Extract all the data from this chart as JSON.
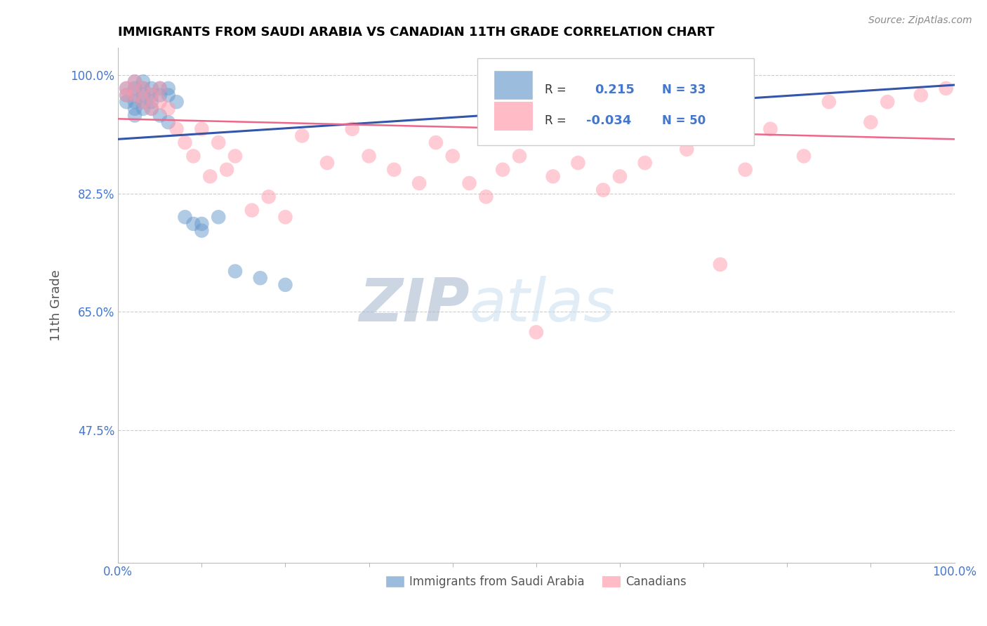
{
  "title": "IMMIGRANTS FROM SAUDI ARABIA VS CANADIAN 11TH GRADE CORRELATION CHART",
  "source": "Source: ZipAtlas.com",
  "ylabel": "11th Grade",
  "xlim": [
    0.0,
    1.0
  ],
  "ylim": [
    0.28,
    1.04
  ],
  "yticks": [
    0.475,
    0.65,
    0.825,
    1.0
  ],
  "ytick_labels": [
    "47.5%",
    "65.0%",
    "82.5%",
    "100.0%"
  ],
  "xtick_labels": [
    "0.0%",
    "100.0%"
  ],
  "xticks": [
    0.0,
    1.0
  ],
  "blue_R": 0.215,
  "blue_N": 33,
  "pink_R": -0.034,
  "pink_N": 50,
  "blue_color": "#6699CC",
  "pink_color": "#FF99AA",
  "blue_line_color": "#3355AA",
  "pink_line_color": "#EE6688",
  "background_color": "#FFFFFF",
  "watermark_color": "#C8DDF0",
  "grid_color": "#CCCCCC",
  "title_color": "#000000",
  "axis_label_color": "#555555",
  "tick_label_color": "#4477CC",
  "blue_x": [
    0.01,
    0.01,
    0.01,
    0.02,
    0.02,
    0.02,
    0.02,
    0.02,
    0.02,
    0.03,
    0.03,
    0.03,
    0.03,
    0.03,
    0.04,
    0.04,
    0.04,
    0.05,
    0.05,
    0.06,
    0.06,
    0.07,
    0.08,
    0.09,
    0.1,
    0.12,
    0.14,
    0.17,
    0.2,
    0.04,
    0.05,
    0.06,
    0.1
  ],
  "blue_y": [
    0.98,
    0.97,
    0.96,
    0.99,
    0.98,
    0.97,
    0.96,
    0.95,
    0.94,
    0.99,
    0.98,
    0.97,
    0.96,
    0.95,
    0.98,
    0.97,
    0.96,
    0.98,
    0.97,
    0.98,
    0.97,
    0.96,
    0.79,
    0.78,
    0.77,
    0.79,
    0.71,
    0.7,
    0.69,
    0.95,
    0.94,
    0.93,
    0.78
  ],
  "pink_x": [
    0.01,
    0.01,
    0.02,
    0.02,
    0.03,
    0.03,
    0.04,
    0.04,
    0.05,
    0.05,
    0.06,
    0.07,
    0.08,
    0.09,
    0.1,
    0.11,
    0.12,
    0.13,
    0.14,
    0.16,
    0.18,
    0.2,
    0.22,
    0.25,
    0.28,
    0.3,
    0.33,
    0.36,
    0.38,
    0.4,
    0.42,
    0.44,
    0.46,
    0.48,
    0.5,
    0.52,
    0.55,
    0.58,
    0.6,
    0.63,
    0.68,
    0.72,
    0.75,
    0.78,
    0.82,
    0.85,
    0.9,
    0.92,
    0.96,
    0.99
  ],
  "pink_y": [
    0.98,
    0.97,
    0.99,
    0.97,
    0.98,
    0.96,
    0.97,
    0.95,
    0.98,
    0.96,
    0.95,
    0.92,
    0.9,
    0.88,
    0.92,
    0.85,
    0.9,
    0.86,
    0.88,
    0.8,
    0.82,
    0.79,
    0.91,
    0.87,
    0.92,
    0.88,
    0.86,
    0.84,
    0.9,
    0.88,
    0.84,
    0.82,
    0.86,
    0.88,
    0.62,
    0.85,
    0.87,
    0.83,
    0.85,
    0.87,
    0.89,
    0.72,
    0.86,
    0.92,
    0.88,
    0.96,
    0.93,
    0.96,
    0.97,
    0.98
  ],
  "blue_trend_start_y": 0.905,
  "blue_trend_end_y": 0.985,
  "pink_trend_start_y": 0.935,
  "pink_trend_end_y": 0.905
}
